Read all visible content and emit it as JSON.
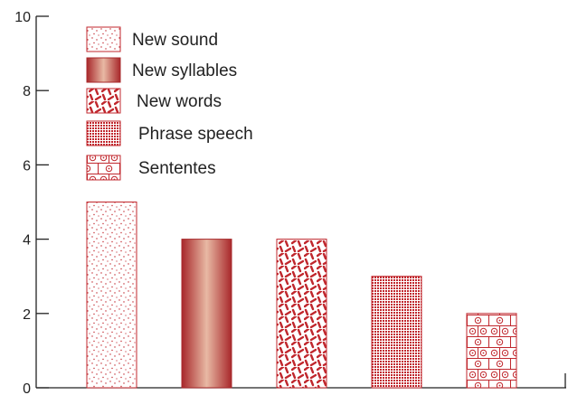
{
  "chart_data": {
    "type": "bar",
    "categories": [
      "New sound",
      "New syllables",
      "New words",
      "Phrase speech",
      "Sententes"
    ],
    "values": [
      5,
      4,
      4,
      3,
      2
    ],
    "ylim": [
      0,
      10
    ],
    "yticks": [
      "0",
      "2",
      "4",
      "6",
      "8",
      "10"
    ],
    "grid": false,
    "legend_placement": "top-left",
    "colors": {
      "bar": "#c0272d",
      "dark": "#a8282b",
      "light": "#e8b9a4",
      "axis": "#222222"
    },
    "patterns": [
      "dots",
      "gradient",
      "dashes",
      "grid",
      "brick-circles"
    ]
  }
}
